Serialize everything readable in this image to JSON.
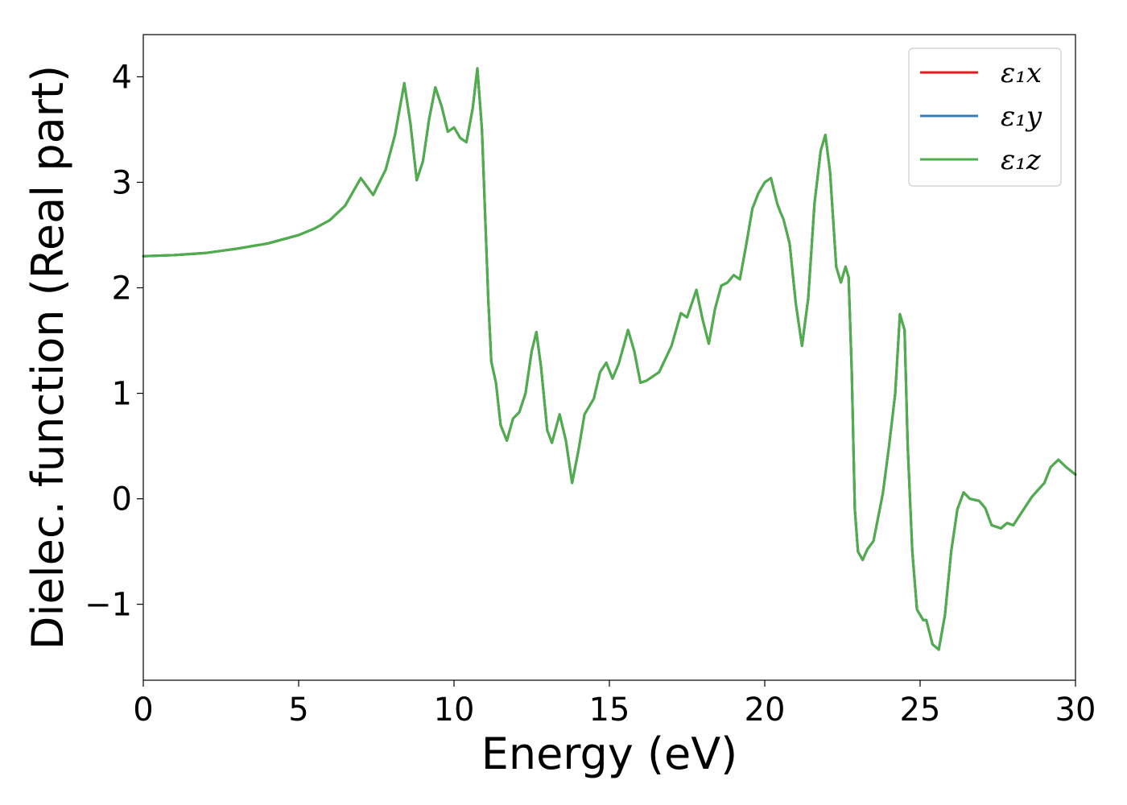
{
  "chart_data": {
    "type": "line",
    "title": "",
    "xlabel": "Energy (eV)",
    "ylabel": "Dielec. function (Real part)",
    "xlim": [
      0,
      30
    ],
    "ylim": [
      -1.72,
      4.4
    ],
    "xticks": [
      0,
      5,
      10,
      15,
      20,
      25,
      30
    ],
    "xtick_labels": [
      "0",
      "5",
      "10",
      "15",
      "20",
      "25",
      "30"
    ],
    "yticks": [
      -1,
      0,
      1,
      2,
      3,
      4
    ],
    "ytick_labels": [
      "−1",
      "0",
      "1",
      "2",
      "3",
      "4"
    ],
    "grid": false,
    "legend_position": "top-right",
    "x": [
      0,
      1,
      2,
      3,
      4,
      5,
      5.5,
      6,
      6.5,
      7.0,
      7.4,
      7.8,
      8.1,
      8.4,
      8.6,
      8.8,
      9.0,
      9.2,
      9.4,
      9.6,
      9.8,
      10.0,
      10.2,
      10.4,
      10.6,
      10.75,
      10.9,
      11.0,
      11.1,
      11.2,
      11.35,
      11.5,
      11.7,
      11.9,
      12.1,
      12.3,
      12.5,
      12.65,
      12.8,
      13.0,
      13.15,
      13.4,
      13.6,
      13.8,
      14.0,
      14.2,
      14.5,
      14.7,
      14.9,
      15.1,
      15.3,
      15.6,
      15.8,
      16.0,
      16.2,
      16.6,
      17.0,
      17.3,
      17.5,
      17.8,
      18.0,
      18.2,
      18.4,
      18.6,
      18.8,
      19.0,
      19.2,
      19.4,
      19.6,
      19.8,
      20.0,
      20.2,
      20.4,
      20.5,
      20.6,
      20.8,
      21.0,
      21.2,
      21.4,
      21.6,
      21.8,
      21.95,
      22.1,
      22.3,
      22.45,
      22.6,
      22.7,
      22.8,
      22.9,
      23.0,
      23.15,
      23.3,
      23.5,
      23.8,
      24.0,
      24.2,
      24.35,
      24.5,
      24.6,
      24.75,
      24.9,
      25.1,
      25.2,
      25.4,
      25.6,
      25.8,
      26.0,
      26.2,
      26.4,
      26.6,
      26.9,
      27.1,
      27.3,
      27.6,
      27.8,
      28.0,
      28.2,
      28.6,
      29.0,
      29.2,
      29.45,
      29.7,
      30.0
    ],
    "series": [
      {
        "name": "ε₁x",
        "color": "#e41a1c",
        "values": [
          2.3,
          2.31,
          2.33,
          2.37,
          2.42,
          2.5,
          2.56,
          2.64,
          2.78,
          3.04,
          2.88,
          3.12,
          3.45,
          3.94,
          3.55,
          3.02,
          3.2,
          3.6,
          3.9,
          3.72,
          3.48,
          3.52,
          3.42,
          3.38,
          3.7,
          4.08,
          3.5,
          2.7,
          1.9,
          1.3,
          1.1,
          0.7,
          0.55,
          0.76,
          0.82,
          1.0,
          1.4,
          1.58,
          1.25,
          0.65,
          0.53,
          0.8,
          0.55,
          0.15,
          0.45,
          0.8,
          0.95,
          1.2,
          1.29,
          1.14,
          1.28,
          1.6,
          1.4,
          1.1,
          1.12,
          1.2,
          1.45,
          1.76,
          1.72,
          1.98,
          1.7,
          1.47,
          1.8,
          2.02,
          2.05,
          2.12,
          2.08,
          2.4,
          2.75,
          2.9,
          3.0,
          3.04,
          2.8,
          2.72,
          2.65,
          2.42,
          1.85,
          1.45,
          1.9,
          2.8,
          3.3,
          3.45,
          3.1,
          2.2,
          2.05,
          2.2,
          2.1,
          1.2,
          -0.1,
          -0.5,
          -0.58,
          -0.48,
          -0.4,
          0.05,
          0.5,
          1.0,
          1.75,
          1.6,
          0.5,
          -0.5,
          -1.05,
          -1.15,
          -1.15,
          -1.38,
          -1.43,
          -1.1,
          -0.5,
          -0.1,
          0.06,
          0.0,
          -0.02,
          -0.09,
          -0.25,
          -0.28,
          -0.23,
          -0.25,
          -0.16,
          0.02,
          0.15,
          0.3,
          0.37,
          0.3,
          0.23
        ]
      },
      {
        "name": "ε₁y",
        "color": "#377eb8",
        "values": [
          2.3,
          2.31,
          2.33,
          2.37,
          2.42,
          2.5,
          2.56,
          2.64,
          2.78,
          3.04,
          2.88,
          3.12,
          3.45,
          3.94,
          3.55,
          3.02,
          3.2,
          3.6,
          3.9,
          3.72,
          3.48,
          3.52,
          3.42,
          3.38,
          3.7,
          4.08,
          3.5,
          2.7,
          1.9,
          1.3,
          1.1,
          0.7,
          0.55,
          0.76,
          0.82,
          1.0,
          1.4,
          1.58,
          1.25,
          0.65,
          0.53,
          0.8,
          0.55,
          0.15,
          0.45,
          0.8,
          0.95,
          1.2,
          1.29,
          1.14,
          1.28,
          1.6,
          1.4,
          1.1,
          1.12,
          1.2,
          1.45,
          1.76,
          1.72,
          1.98,
          1.7,
          1.47,
          1.8,
          2.02,
          2.05,
          2.12,
          2.08,
          2.4,
          2.75,
          2.9,
          3.0,
          3.04,
          2.8,
          2.72,
          2.65,
          2.42,
          1.85,
          1.45,
          1.9,
          2.8,
          3.3,
          3.45,
          3.1,
          2.2,
          2.05,
          2.2,
          2.1,
          1.2,
          -0.1,
          -0.5,
          -0.58,
          -0.48,
          -0.4,
          0.05,
          0.5,
          1.0,
          1.75,
          1.6,
          0.5,
          -0.5,
          -1.05,
          -1.15,
          -1.15,
          -1.38,
          -1.43,
          -1.1,
          -0.5,
          -0.1,
          0.06,
          0.0,
          -0.02,
          -0.09,
          -0.25,
          -0.28,
          -0.23,
          -0.25,
          -0.16,
          0.02,
          0.15,
          0.3,
          0.37,
          0.3,
          0.23
        ]
      },
      {
        "name": "ε₁z",
        "color": "#4daf4a",
        "values": [
          2.3,
          2.31,
          2.33,
          2.37,
          2.42,
          2.5,
          2.56,
          2.64,
          2.78,
          3.04,
          2.88,
          3.12,
          3.45,
          3.94,
          3.55,
          3.02,
          3.2,
          3.6,
          3.9,
          3.72,
          3.48,
          3.52,
          3.42,
          3.38,
          3.7,
          4.08,
          3.5,
          2.7,
          1.9,
          1.3,
          1.1,
          0.7,
          0.55,
          0.76,
          0.82,
          1.0,
          1.4,
          1.58,
          1.25,
          0.65,
          0.53,
          0.8,
          0.55,
          0.15,
          0.45,
          0.8,
          0.95,
          1.2,
          1.29,
          1.14,
          1.28,
          1.6,
          1.4,
          1.1,
          1.12,
          1.2,
          1.45,
          1.76,
          1.72,
          1.98,
          1.7,
          1.47,
          1.8,
          2.02,
          2.05,
          2.12,
          2.08,
          2.4,
          2.75,
          2.9,
          3.0,
          3.04,
          2.8,
          2.72,
          2.65,
          2.42,
          1.85,
          1.45,
          1.9,
          2.8,
          3.3,
          3.45,
          3.1,
          2.2,
          2.05,
          2.2,
          2.1,
          1.2,
          -0.1,
          -0.5,
          -0.58,
          -0.48,
          -0.4,
          0.05,
          0.5,
          1.0,
          1.75,
          1.6,
          0.5,
          -0.5,
          -1.05,
          -1.15,
          -1.15,
          -1.38,
          -1.43,
          -1.1,
          -0.5,
          -0.1,
          0.06,
          0.0,
          -0.02,
          -0.09,
          -0.25,
          -0.28,
          -0.23,
          -0.25,
          -0.16,
          0.02,
          0.15,
          0.3,
          0.37,
          0.3,
          0.23
        ]
      }
    ]
  }
}
